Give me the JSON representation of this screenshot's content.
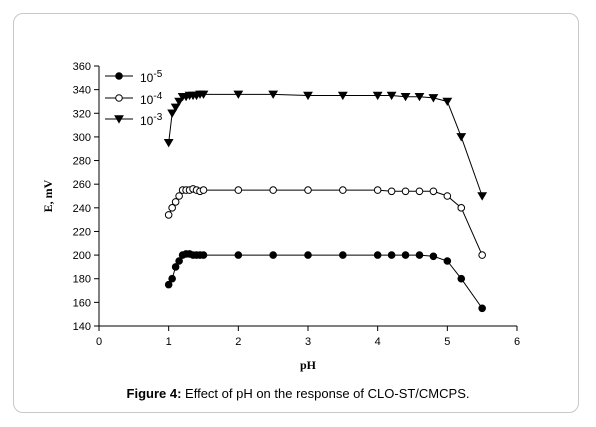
{
  "caption": {
    "label": "Figure 4:",
    "text": " Effect of pH on the response of CLO-ST/CMCPS."
  },
  "chart_data": {
    "type": "line",
    "title": "",
    "xlabel": "pH",
    "ylabel": "E, mV",
    "xlim": [
      0,
      6
    ],
    "ylim": [
      140,
      360
    ],
    "xticks": [
      0,
      1,
      2,
      3,
      4,
      5,
      6
    ],
    "yticks": [
      140,
      160,
      180,
      200,
      220,
      240,
      260,
      280,
      300,
      320,
      340,
      360
    ],
    "grid": false,
    "legend_position": "top-left",
    "series": [
      {
        "name": "10-5",
        "base": "10",
        "exp": "-5",
        "marker": "filled-circle",
        "x": [
          1.0,
          1.05,
          1.1,
          1.15,
          1.2,
          1.25,
          1.3,
          1.35,
          1.4,
          1.45,
          1.5,
          2.0,
          2.5,
          3.0,
          3.5,
          4.0,
          4.2,
          4.4,
          4.6,
          4.8,
          5.0,
          5.2,
          5.5
        ],
        "y": [
          175,
          180,
          190,
          195,
          200,
          201,
          201,
          200,
          200,
          200,
          200,
          200,
          200,
          200,
          200,
          200,
          200,
          200,
          200,
          199,
          195,
          180,
          155
        ]
      },
      {
        "name": "10-4",
        "base": "10",
        "exp": "-4",
        "marker": "open-circle",
        "x": [
          1.0,
          1.05,
          1.1,
          1.15,
          1.2,
          1.25,
          1.3,
          1.35,
          1.4,
          1.45,
          1.5,
          2.0,
          2.5,
          3.0,
          3.5,
          4.0,
          4.2,
          4.4,
          4.6,
          4.8,
          5.0,
          5.2,
          5.5
        ],
        "y": [
          234,
          240,
          245,
          250,
          255,
          255,
          255,
          256,
          255,
          254,
          255,
          255,
          255,
          255,
          255,
          255,
          254,
          254,
          254,
          254,
          250,
          240,
          200
        ]
      },
      {
        "name": "10-3",
        "base": "10",
        "exp": "-3",
        "marker": "filled-triangle-down",
        "x": [
          1.0,
          1.05,
          1.1,
          1.15,
          1.2,
          1.25,
          1.3,
          1.35,
          1.4,
          1.45,
          1.5,
          2.0,
          2.5,
          3.0,
          3.5,
          4.0,
          4.2,
          4.4,
          4.6,
          4.8,
          5.0,
          5.2,
          5.5
        ],
        "y": [
          295,
          320,
          325,
          330,
          334,
          334,
          335,
          335,
          335,
          336,
          336,
          336,
          336,
          335,
          335,
          335,
          335,
          334,
          334,
          333,
          330,
          300,
          250
        ]
      }
    ]
  }
}
